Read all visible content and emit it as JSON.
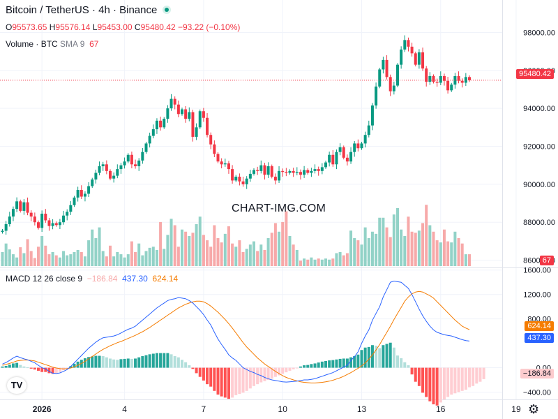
{
  "header": {
    "symbol": "Bitcoin / TetherUS · 4h · Binance",
    "ohlc": {
      "o_label": "O",
      "o": "95573.65",
      "h_label": "H",
      "h": "95576.14",
      "l_label": "L",
      "l": "95453.00",
      "c_label": "C",
      "c": "95480.42",
      "change": "−93.22 (−0.10%)"
    }
  },
  "volume_legend": {
    "label": "Volume · BTC",
    "sma": "SMA 9",
    "value": "67"
  },
  "macd_legend": {
    "label": "MACD 12 26 close 9",
    "hist": "−186.84",
    "macd": "437.30",
    "signal": "624.14"
  },
  "watermark": "CHART-IMG.COM",
  "logo": "TV",
  "colors": {
    "up": "#089981",
    "down": "#f23645",
    "macd": "#2962ff",
    "signal": "#f57c00"
  },
  "chart_data": [
    {
      "type": "candlestick",
      "title": "Bitcoin / TetherUS · 4h · Binance",
      "x_ticks": [
        {
          "i": 11,
          "label": "2026"
        },
        {
          "i": 34,
          "label": "4"
        },
        {
          "i": 56,
          "label": "7"
        },
        {
          "i": 78,
          "label": "10"
        },
        {
          "i": 100,
          "label": "13"
        },
        {
          "i": 122,
          "label": "16"
        },
        {
          "i": 143,
          "label": "19"
        }
      ],
      "y_ticks": [
        98000,
        96000,
        94000,
        92000,
        90000,
        88000,
        86000
      ],
      "y_tick_labels": [
        "98000.00",
        "96000.00",
        "94000.00",
        "92000.00",
        "90000.00",
        "88000.00",
        "86000.00"
      ],
      "ylim": [
        85800,
        98900
      ],
      "current_price": 95480.42,
      "current_price_label": "95480.42",
      "closes": [
        87550,
        87900,
        88300,
        88700,
        89100,
        88600,
        89050,
        88500,
        88300,
        88000,
        87700,
        88450,
        88100,
        87800,
        87950,
        87850,
        88000,
        88350,
        88550,
        88900,
        89300,
        89700,
        89350,
        89500,
        89900,
        90250,
        90600,
        90950,
        91050,
        90700,
        90300,
        90450,
        90800,
        91000,
        91200,
        91550,
        91050,
        90950,
        91250,
        91700,
        92150,
        92550,
        92900,
        93350,
        93000,
        93450,
        94000,
        94500,
        94200,
        93700,
        93950,
        93450,
        93800,
        92500,
        93000,
        93850,
        93500,
        92600,
        92100,
        91600,
        91200,
        91050,
        91100,
        90800,
        90200,
        90400,
        90150,
        90000,
        90300,
        90550,
        90750,
        90700,
        91000,
        90500,
        90950,
        90400,
        90200,
        90700,
        90650,
        90600,
        90700,
        90600,
        90650,
        90500,
        90750,
        90600,
        90700,
        90800,
        90700,
        90900,
        91150,
        91550,
        91050,
        91700,
        91950,
        91400,
        91200,
        91700,
        92150,
        91900,
        92150,
        92600,
        93100,
        94150,
        95150,
        96050,
        96550,
        95650,
        94900,
        95200,
        96300,
        97100,
        97600,
        97250,
        96900,
        96300,
        96950,
        96100,
        95400,
        95700,
        95400,
        95350,
        95700,
        95450,
        94950,
        95250,
        95700,
        95450,
        95350,
        95650,
        95480
      ],
      "volume_series": [
        {
          "name": "Volume",
          "unit": "BTC",
          "ylim": [
            0,
            2600
          ],
          "values": [
            520,
            840,
            620,
            440,
            320,
            700,
            480,
            1000,
            560,
            300,
            720,
            1120,
            760,
            440,
            520,
            400,
            320,
            560,
            400,
            440,
            520,
            600,
            520,
            360,
            960,
            1360,
            1040,
            1440,
            560,
            360,
            760,
            360,
            520,
            440,
            320,
            440,
            920,
            520,
            840,
            400,
            560,
            680,
            720,
            600,
            1640,
            640,
            1160,
            1760,
            1520,
            720,
            1360,
            1280,
            1120,
            1240,
            1560,
            1840,
            1160,
            960,
            720,
            1520,
            1040,
            880,
            1200,
            1480,
            840,
            720,
            960,
            520,
            640,
            800,
            920,
            560,
            800,
            600,
            1040,
            1240,
            1600,
            1280,
            1640,
            2040,
            1120,
            800,
            600,
            200,
            280,
            240,
            320,
            240,
            280,
            240,
            280,
            240,
            280,
            480,
            520,
            400,
            480,
            1320,
            1040,
            960,
            800,
            1440,
            1040,
            1280,
            1200,
            1800,
            1800,
            1440,
            1080,
            1920,
            2160,
            1360,
            1120,
            1840,
            1280,
            1240,
            1320,
            1600,
            2280,
            1520,
            1280,
            960,
            880,
            1360,
            920,
            880,
            1280,
            1040,
            840,
            440,
            440,
            520,
            720,
            67
          ]
        },
        {
          "name": "SMA 9",
          "values": []
        }
      ],
      "macd_series": [
        {
          "name": "MACD",
          "ylim": [
            -520,
            1620
          ],
          "y_ticks": [
            1600,
            1200,
            800,
            0,
            -400
          ],
          "y_tick_labels": [
            "1600.00",
            "1200.00",
            "800.00",
            "0.00",
            "−400.00"
          ],
          "macd": [
            60,
            85,
            120,
            160,
            190,
            165,
            145,
            130,
            105,
            80,
            40,
            0,
            -20,
            -60,
            -90,
            -95,
            -85,
            -60,
            -30,
            20,
            80,
            140,
            200,
            260,
            320,
            370,
            420,
            460,
            490,
            500,
            510,
            520,
            540,
            570,
            600,
            630,
            650,
            680,
            730,
            780,
            830,
            880,
            930,
            980,
            1020,
            1060,
            1100,
            1120,
            1130,
            1150,
            1140,
            1130,
            1100,
            1060,
            1000,
            940,
            870,
            780,
            700,
            580,
            470,
            380,
            300,
            210,
            160,
            120,
            60,
            0,
            -30,
            -60,
            -80,
            -110,
            -130,
            -160,
            -180,
            -200,
            -210,
            -220,
            -230,
            -235,
            -230,
            -225,
            -220,
            -210,
            -200,
            -200,
            -190,
            -180,
            -160,
            -140,
            -120,
            -100,
            -80,
            -50,
            -20,
            10,
            40,
            120,
            180,
            260,
            400,
            520,
            620,
            780,
            890,
            1000,
            1160,
            1280,
            1400,
            1420,
            1410,
            1400,
            1350,
            1300,
            1200,
            1080,
            960,
            850,
            760,
            680,
            620,
            580,
            560,
            540,
            530,
            520,
            500,
            480,
            460,
            445,
            437
          ],
          "signal": [
            40,
            55,
            70,
            90,
            110,
            120,
            125,
            125,
            120,
            110,
            90,
            70,
            50,
            30,
            10,
            -5,
            -15,
            -20,
            -15,
            -5,
            15,
            40,
            70,
            105,
            145,
            185,
            225,
            265,
            300,
            330,
            360,
            385,
            410,
            430,
            455,
            480,
            505,
            530,
            560,
            590,
            625,
            660,
            700,
            740,
            780,
            820,
            860,
            900,
            940,
            980,
            1010,
            1040,
            1060,
            1080,
            1090,
            1090,
            1080,
            1050,
            1010,
            960,
            910,
            850,
            790,
            720,
            650,
            570,
            490,
            410,
            340,
            280,
            220,
            160,
            110,
            60,
            20,
            -20,
            -60,
            -95,
            -130,
            -160,
            -180,
            -200,
            -215,
            -230,
            -240,
            -245,
            -250,
            -250,
            -245,
            -240,
            -230,
            -220,
            -205,
            -185,
            -165,
            -140,
            -110,
            -80,
            -45,
            -10,
            30,
            80,
            140,
            210,
            290,
            380,
            480,
            580,
            680,
            790,
            890,
            990,
            1090,
            1160,
            1210,
            1240,
            1250,
            1240,
            1210,
            1180,
            1140,
            1080,
            1020,
            960,
            900,
            840,
            780,
            730,
            680,
            650,
            624
          ],
          "histogram": [
            20,
            30,
            50,
            70,
            80,
            45,
            20,
            5,
            -15,
            -30,
            -50,
            -70,
            -70,
            -90,
            -100,
            -90,
            -70,
            -40,
            -15,
            25,
            65,
            100,
            130,
            155,
            175,
            185,
            195,
            195,
            190,
            170,
            150,
            135,
            130,
            140,
            145,
            150,
            145,
            150,
            170,
            190,
            205,
            220,
            230,
            240,
            240,
            240,
            240,
            220,
            190,
            170,
            130,
            90,
            40,
            -20,
            -90,
            -150,
            -210,
            -270,
            -310,
            -380,
            -440,
            -470,
            -490,
            -510,
            -490,
            -450,
            -430,
            -410,
            -380,
            -340,
            -300,
            -270,
            -240,
            -220,
            -200,
            -180,
            -150,
            -125,
            -100,
            -75,
            -50,
            -25,
            -5,
            20,
            40,
            45,
            60,
            70,
            85,
            100,
            110,
            120,
            125,
            135,
            145,
            150,
            150,
            170,
            190,
            215,
            290,
            330,
            340,
            370,
            360,
            320,
            370,
            390,
            410,
            330,
            200,
            155,
            90,
            40,
            -110,
            -230,
            -300,
            -410,
            -480,
            -550,
            -600,
            -620,
            -570,
            -520,
            -480,
            -440,
            -420,
            -400,
            -380,
            -360,
            -320,
            -300,
            -260,
            -230,
            -187
          ]
        }
      ]
    }
  ]
}
